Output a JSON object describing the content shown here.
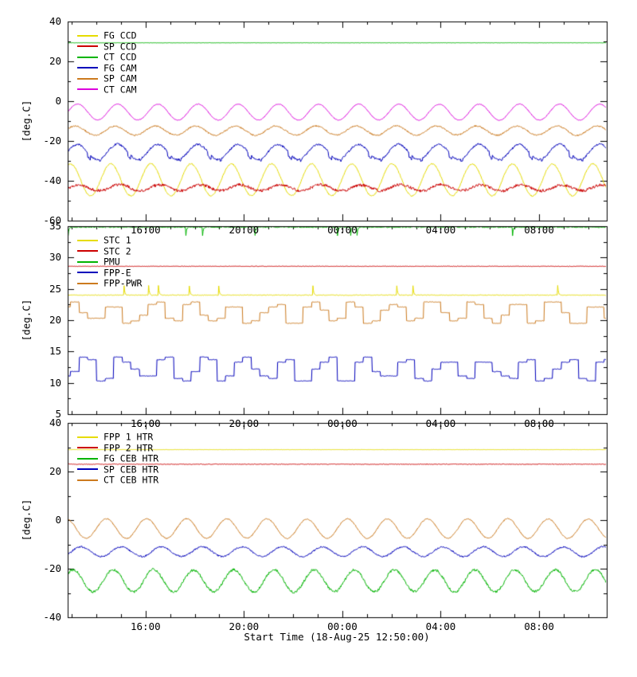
{
  "figure": {
    "xlabel": "Start Time (18-Aug-25 12:50:00)",
    "ylabel": "[deg.C]",
    "background": "#ffffff",
    "axis_color": "#000000",
    "x_range_hours": [
      12.8333,
      34.75
    ],
    "x_minor_step_h": 1,
    "xticks": [
      {
        "hour": 16,
        "label": "16:00"
      },
      {
        "hour": 20,
        "label": "20:00"
      },
      {
        "hour": 24,
        "label": "00:00"
      },
      {
        "hour": 28,
        "label": "04:00"
      },
      {
        "hour": 32,
        "label": "08:00"
      }
    ]
  },
  "chart_data": [
    {
      "type": "line",
      "ylabel": "[deg.C]",
      "ylim": [
        -60,
        40
      ],
      "ytick_step": 20,
      "yticks": [
        -60,
        -40,
        -20,
        0,
        20,
        40
      ],
      "legend_position": "top-left",
      "series": [
        {
          "name": "FG CCD",
          "color": "#e6dc00",
          "kind": "sine",
          "base": -39.5,
          "amp": 8.0,
          "period_h": 1.633,
          "phase": 2.0,
          "jitter": 0.6,
          "noise": 0.12
        },
        {
          "name": "SP CCD",
          "color": "#cc0000",
          "kind": "sine",
          "base": -43.5,
          "amp": 1.5,
          "period_h": 1.633,
          "phase": 0.6,
          "jitter": 1.4,
          "noise": 0.18
        },
        {
          "name": "CT CCD",
          "color": "#00b400",
          "kind": "flat",
          "base": 29.3,
          "jitter": 0.15
        },
        {
          "name": "FG CAM",
          "color": "#0000bb",
          "kind": "jagsine",
          "base": -25.5,
          "amp": 3.8,
          "period_h": 1.633,
          "phase": 0.15,
          "jitter": 0.9,
          "noise": 0.15
        },
        {
          "name": "SP CAM",
          "color": "#cc7a1e",
          "kind": "sine",
          "base": -14.8,
          "amp": 2.3,
          "period_h": 1.633,
          "phase": 1.3,
          "jitter": 0.7,
          "noise": 0.12
        },
        {
          "name": "CT CAM",
          "color": "#dd00dd",
          "kind": "sine",
          "base": -5.5,
          "amp": 4.0,
          "period_h": 1.633,
          "phase": 0.9,
          "jitter": 0.3,
          "noise": 0.08
        }
      ]
    },
    {
      "type": "line",
      "ylabel": "[deg.C]",
      "ylim": [
        5,
        35
      ],
      "ytick_step": 5,
      "yticks": [
        5,
        10,
        15,
        20,
        25,
        30,
        35
      ],
      "legend_position": "top-left",
      "series": [
        {
          "name": "STC 1",
          "color": "#e6dc00",
          "kind": "flat",
          "base": 24.0,
          "jitter": 0.12,
          "spike_rate": 0.004,
          "spike_size": 1.5
        },
        {
          "name": "STC 2",
          "color": "#cc0000",
          "kind": "flat",
          "base": 28.6,
          "jitter": 0.08
        },
        {
          "name": "PMU",
          "color": "#00b400",
          "kind": "flat",
          "base": 34.85,
          "jitter": 0.18,
          "spike_rate": 0.006,
          "spike_size": -1.3
        },
        {
          "name": "FPP-E",
          "color": "#0000bb",
          "kind": "steps",
          "base": 12.2,
          "amp": 1.5,
          "period_h": 1.633,
          "phase": 0.4,
          "jitter": 0.1
        },
        {
          "name": "FPP-PWR",
          "color": "#cc7a1e",
          "kind": "steps",
          "base": 21.2,
          "amp": 1.3,
          "period_h": 1.633,
          "phase": 2.2,
          "jitter": 0.1
        }
      ]
    },
    {
      "type": "line",
      "ylabel": "[deg.C]",
      "ylim": [
        -40,
        40
      ],
      "ytick_step": 20,
      "yticks": [
        -40,
        -20,
        0,
        20,
        40
      ],
      "legend_position": "top-left",
      "series": [
        {
          "name": "FPP 1 HTR",
          "color": "#e6dc00",
          "kind": "flat",
          "base": 29.0,
          "jitter": 0.1
        },
        {
          "name": "FPP 2 HTR",
          "color": "#cc0000",
          "kind": "flat",
          "base": 23.0,
          "jitter": 0.3
        },
        {
          "name": "FG CEB HTR",
          "color": "#00b400",
          "kind": "sine",
          "base": -25.0,
          "amp": 4.5,
          "period_h": 1.633,
          "phase": 1.6,
          "jitter": 1.0,
          "noise": 0.15
        },
        {
          "name": "SP CEB HTR",
          "color": "#0000bb",
          "kind": "sine",
          "base": -13.0,
          "amp": 2.0,
          "period_h": 1.633,
          "phase": 0.3,
          "jitter": 0.6,
          "noise": 0.12
        },
        {
          "name": "CT CEB HTR",
          "color": "#cc7a1e",
          "kind": "sine",
          "base": -3.5,
          "amp": 4.0,
          "period_h": 1.633,
          "phase": 2.7,
          "jitter": 0.4,
          "noise": 0.1
        }
      ]
    }
  ]
}
